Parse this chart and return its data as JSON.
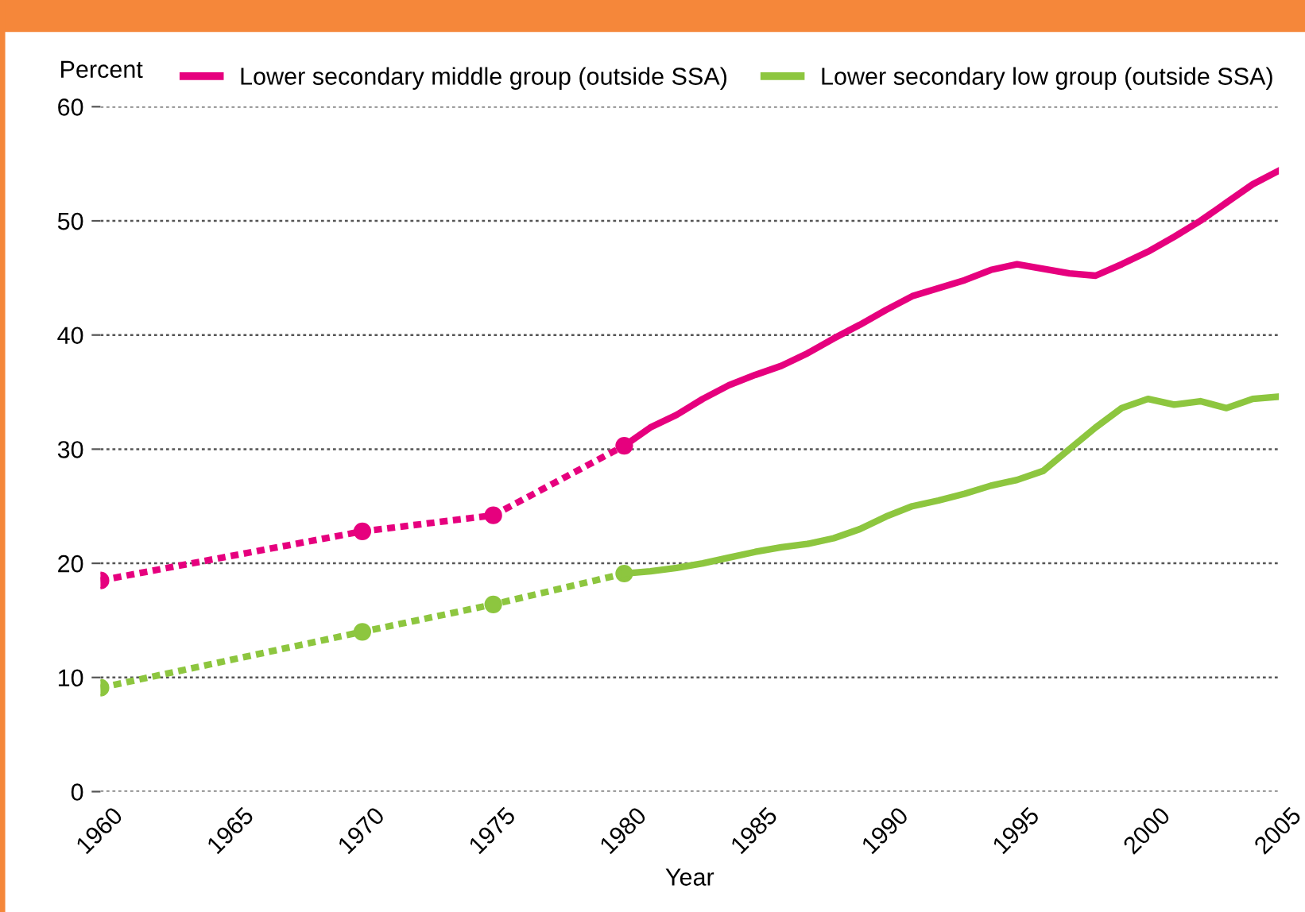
{
  "chart_data": {
    "type": "line",
    "xlabel": "Year",
    "ylabel": "Percent",
    "xlim": [
      1960,
      2005
    ],
    "xticks": [
      1960,
      1965,
      1970,
      1975,
      1980,
      1985,
      1990,
      1995,
      2000,
      2005
    ],
    "ylim": [
      0,
      60
    ],
    "yticks": [
      0,
      10,
      20,
      30,
      40,
      50,
      60
    ],
    "grid": "y",
    "legend": "top",
    "series": [
      {
        "color": "#e6007e",
        "line_style": "dotted",
        "marker": "circle",
        "x": [
          1960,
          1970,
          1975,
          1980
        ],
        "values": [
          18.5,
          22.8,
          24.2,
          30.3
        ]
      },
      {
        "name": "Lower secondary middle group (outside SSA)",
        "color": "#e6007e",
        "line_style": "solid",
        "marker": "none",
        "x": [
          1980,
          1981,
          1982,
          1983,
          1984,
          1985,
          1986,
          1987,
          1988,
          1989,
          1990,
          1991,
          1992,
          1993,
          1994,
          1995,
          1996,
          1997,
          1998,
          1999,
          2000,
          2001,
          2002,
          2003,
          2004,
          2005
        ],
        "values": [
          30.3,
          31.9,
          33.0,
          34.4,
          35.6,
          36.5,
          37.3,
          38.4,
          39.7,
          40.9,
          42.2,
          43.4,
          44.1,
          44.8,
          45.7,
          46.2,
          45.8,
          45.4,
          45.2,
          46.2,
          47.3,
          48.6,
          50.0,
          51.6,
          53.2,
          54.4
        ]
      },
      {
        "color": "#8dc63f",
        "line_style": "dotted",
        "marker": "circle",
        "x": [
          1960,
          1970,
          1975,
          1980
        ],
        "values": [
          9.1,
          14.0,
          16.4,
          19.1
        ]
      },
      {
        "name": "Lower secondary low group (outside SSA)",
        "color": "#8dc63f",
        "line_style": "solid",
        "marker": "none",
        "x": [
          1980,
          1981,
          1982,
          1983,
          1984,
          1985,
          1986,
          1987,
          1988,
          1989,
          1990,
          1991,
          1992,
          1993,
          1994,
          1995,
          1996,
          1997,
          1998,
          1999,
          2000,
          2001,
          2002,
          2003,
          2004,
          2005
        ],
        "values": [
          19.1,
          19.3,
          19.6,
          20.0,
          20.5,
          21.0,
          21.4,
          21.7,
          22.2,
          23.0,
          24.1,
          25.0,
          25.5,
          26.1,
          26.8,
          27.3,
          28.1,
          30.0,
          31.9,
          33.6,
          34.4,
          33.9,
          34.2,
          33.6,
          34.4,
          34.6
        ]
      }
    ]
  }
}
